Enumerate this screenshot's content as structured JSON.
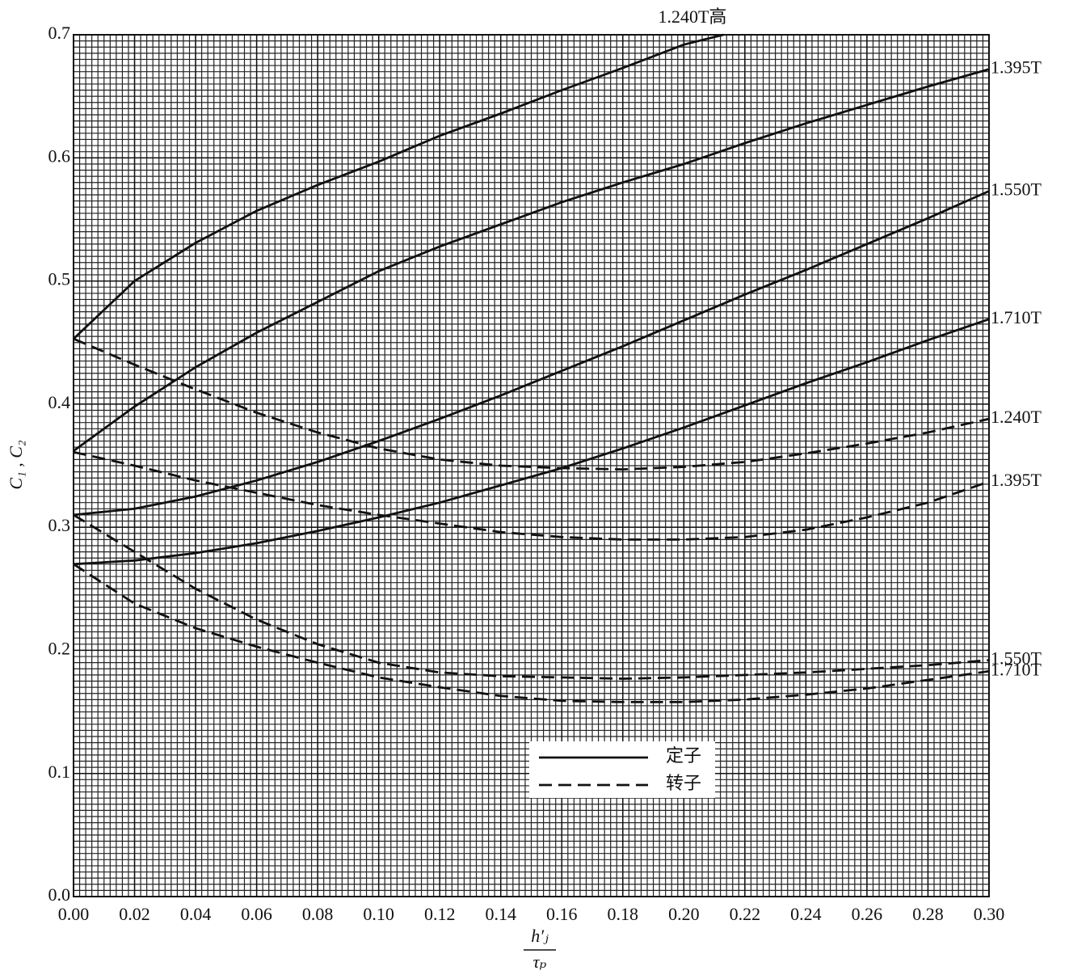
{
  "chart_data": {
    "type": "line",
    "ylabel": "C₁ , C₂",
    "xlabel": {
      "numerator": "h′ⱼ",
      "denominator": "τₚ"
    },
    "xlim": [
      0,
      0.3
    ],
    "ylim": [
      0,
      0.7
    ],
    "xticks": [
      {
        "value": 0,
        "label": "0.00"
      },
      {
        "value": 0.02,
        "label": "0.02"
      },
      {
        "value": 0.04,
        "label": "0.04"
      },
      {
        "value": 0.06,
        "label": "0.06"
      },
      {
        "value": 0.08,
        "label": "0.08"
      },
      {
        "value": 0.1,
        "label": "0.10"
      },
      {
        "value": 0.12,
        "label": "0.12"
      },
      {
        "value": 0.14,
        "label": "0.14"
      },
      {
        "value": 0.16,
        "label": "0.16"
      },
      {
        "value": 0.18,
        "label": "0.18"
      },
      {
        "value": 0.2,
        "label": "0.20"
      },
      {
        "value": 0.22,
        "label": "0.22"
      },
      {
        "value": 0.24,
        "label": "0.24"
      },
      {
        "value": 0.26,
        "label": "0.26"
      },
      {
        "value": 0.28,
        "label": "0.28"
      },
      {
        "value": 0.3,
        "label": "0.30"
      }
    ],
    "yticks": [
      {
        "value": 0,
        "label": "0.0"
      },
      {
        "value": 0.1,
        "label": "0.1"
      },
      {
        "value": 0.2,
        "label": "0.2"
      },
      {
        "value": 0.3,
        "label": "0.3"
      },
      {
        "value": 0.4,
        "label": "0.4"
      },
      {
        "value": 0.5,
        "label": "0.5"
      },
      {
        "value": 0.6,
        "label": "0.6"
      },
      {
        "value": 0.7,
        "label": "0.7"
      }
    ],
    "grid": true,
    "legend": [
      {
        "label": "定子",
        "dashed": false
      },
      {
        "label": "转子",
        "dashed": true
      }
    ],
    "series": [
      {
        "name": "1.240T高",
        "dashed": false,
        "color": "#111111",
        "x": [
          0,
          0.02,
          0.04,
          0.06,
          0.08,
          0.1,
          0.12,
          0.14,
          0.16,
          0.18,
          0.2,
          0.213
        ],
        "values": [
          0.453,
          0.5,
          0.531,
          0.557,
          0.578,
          0.597,
          0.618,
          0.636,
          0.655,
          0.673,
          0.692,
          0.7
        ]
      },
      {
        "name": "1.395T",
        "dashed": false,
        "color": "#111111",
        "x": [
          0,
          0.02,
          0.04,
          0.06,
          0.08,
          0.1,
          0.12,
          0.14,
          0.16,
          0.18,
          0.2,
          0.22,
          0.24,
          0.26,
          0.28,
          0.3
        ],
        "values": [
          0.362,
          0.398,
          0.43,
          0.458,
          0.483,
          0.508,
          0.528,
          0.546,
          0.564,
          0.58,
          0.595,
          0.612,
          0.628,
          0.643,
          0.658,
          0.672
        ]
      },
      {
        "name": "1.550T",
        "dashed": false,
        "color": "#111111",
        "x": [
          0,
          0.02,
          0.04,
          0.06,
          0.08,
          0.1,
          0.12,
          0.14,
          0.16,
          0.18,
          0.2,
          0.22,
          0.24,
          0.26,
          0.28,
          0.3
        ],
        "values": [
          0.31,
          0.315,
          0.325,
          0.338,
          0.353,
          0.37,
          0.388,
          0.407,
          0.427,
          0.447,
          0.468,
          0.489,
          0.509,
          0.53,
          0.551,
          0.573
        ]
      },
      {
        "name": "1.710T",
        "dashed": false,
        "color": "#111111",
        "x": [
          0,
          0.02,
          0.04,
          0.06,
          0.08,
          0.1,
          0.12,
          0.14,
          0.16,
          0.18,
          0.2,
          0.22,
          0.24,
          0.26,
          0.28,
          0.3
        ],
        "values": [
          0.27,
          0.273,
          0.279,
          0.287,
          0.297,
          0.308,
          0.32,
          0.334,
          0.348,
          0.364,
          0.381,
          0.399,
          0.417,
          0.434,
          0.452,
          0.469
        ]
      },
      {
        "name": "1.240T",
        "dashed": true,
        "color": "#111111",
        "x": [
          0,
          0.02,
          0.04,
          0.06,
          0.08,
          0.1,
          0.12,
          0.14,
          0.16,
          0.18,
          0.2,
          0.22,
          0.24,
          0.26,
          0.28,
          0.3
        ],
        "values": [
          0.453,
          0.432,
          0.412,
          0.393,
          0.377,
          0.364,
          0.355,
          0.35,
          0.348,
          0.347,
          0.349,
          0.353,
          0.36,
          0.368,
          0.377,
          0.388
        ]
      },
      {
        "name": "1.395T",
        "dashed": true,
        "color": "#111111",
        "x": [
          0,
          0.02,
          0.04,
          0.06,
          0.08,
          0.1,
          0.12,
          0.14,
          0.16,
          0.18,
          0.2,
          0.22,
          0.24,
          0.26,
          0.28,
          0.3
        ],
        "values": [
          0.361,
          0.35,
          0.338,
          0.328,
          0.318,
          0.31,
          0.303,
          0.296,
          0.292,
          0.29,
          0.29,
          0.292,
          0.298,
          0.308,
          0.32,
          0.337
        ]
      },
      {
        "name": "1.550T",
        "dashed": true,
        "color": "#111111",
        "x": [
          0,
          0.02,
          0.04,
          0.06,
          0.08,
          0.1,
          0.12,
          0.14,
          0.16,
          0.18,
          0.2,
          0.22,
          0.24,
          0.26,
          0.28,
          0.3
        ],
        "values": [
          0.31,
          0.28,
          0.25,
          0.225,
          0.205,
          0.19,
          0.182,
          0.179,
          0.178,
          0.177,
          0.178,
          0.18,
          0.182,
          0.185,
          0.188,
          0.192
        ]
      },
      {
        "name": "1.710T",
        "dashed": true,
        "color": "#111111",
        "x": [
          0,
          0.02,
          0.04,
          0.06,
          0.08,
          0.1,
          0.12,
          0.14,
          0.16,
          0.18,
          0.2,
          0.22,
          0.24,
          0.26,
          0.28,
          0.3
        ],
        "values": [
          0.27,
          0.238,
          0.218,
          0.203,
          0.19,
          0.178,
          0.17,
          0.163,
          0.159,
          0.158,
          0.158,
          0.16,
          0.164,
          0.169,
          0.176,
          0.183
        ]
      }
    ]
  }
}
